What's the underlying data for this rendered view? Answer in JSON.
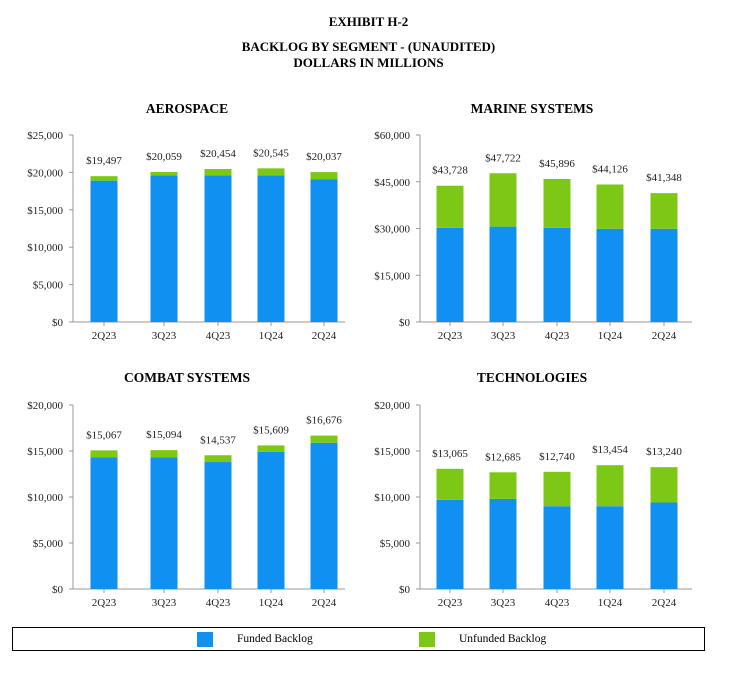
{
  "header": {
    "exhibit": "EXHIBIT H-2",
    "title": "BACKLOG BY SEGMENT - (UNAUDITED)",
    "subtitle": "DOLLARS IN MILLIONS"
  },
  "colors": {
    "funded": "#1090F0",
    "unfunded": "#7CC815",
    "axis": "#999999"
  },
  "legend": {
    "funded_label": "Funded Backlog",
    "unfunded_label": "Unfunded Backlog"
  },
  "chart_data": [
    {
      "type": "bar",
      "stacked": true,
      "title": "AEROSPACE",
      "categories": [
        "2Q23",
        "3Q23",
        "4Q23",
        "1Q24",
        "2Q24"
      ],
      "series": [
        {
          "name": "Funded Backlog",
          "values": [
            18900,
            19600,
            19600,
            19600,
            19100
          ]
        },
        {
          "name": "Unfunded Backlog",
          "values": [
            597,
            459,
            854,
            945,
            937
          ]
        }
      ],
      "totals": [
        19497,
        20059,
        20454,
        20545,
        20037
      ],
      "total_labels": [
        "$19,497",
        "$20,059",
        "$20,454",
        "$20,545",
        "$20,037"
      ],
      "ylim": [
        0,
        25000
      ],
      "yticks": [
        0,
        5000,
        10000,
        15000,
        20000,
        25000
      ],
      "ytick_labels": [
        "$0",
        "$5,000",
        "$10,000",
        "$15,000",
        "$20,000",
        "$25,000"
      ],
      "xlabel": "",
      "ylabel": "",
      "grid": false
    },
    {
      "type": "bar",
      "stacked": true,
      "title": "MARINE SYSTEMS",
      "categories": [
        "2Q23",
        "3Q23",
        "4Q23",
        "1Q24",
        "2Q24"
      ],
      "series": [
        {
          "name": "Funded Backlog",
          "values": [
            30200,
            30600,
            30200,
            29900,
            29900
          ]
        },
        {
          "name": "Unfunded Backlog",
          "values": [
            13528,
            17122,
            15696,
            14226,
            11448
          ]
        }
      ],
      "totals": [
        43728,
        47722,
        45896,
        44126,
        41348
      ],
      "total_labels": [
        "$43,728",
        "$47,722",
        "$45,896",
        "$44,126",
        "$41,348"
      ],
      "ylim": [
        0,
        60000
      ],
      "yticks": [
        0,
        15000,
        30000,
        45000,
        60000
      ],
      "ytick_labels": [
        "$0",
        "$15,000",
        "$30,000",
        "$45,000",
        "$60,000"
      ],
      "xlabel": "",
      "ylabel": "",
      "grid": false
    },
    {
      "type": "bar",
      "stacked": true,
      "title": "COMBAT SYSTEMS",
      "categories": [
        "2Q23",
        "3Q23",
        "4Q23",
        "1Q24",
        "2Q24"
      ],
      "series": [
        {
          "name": "Funded Backlog",
          "values": [
            14300,
            14300,
            13800,
            14900,
            15900
          ]
        },
        {
          "name": "Unfunded Backlog",
          "values": [
            767,
            794,
            737,
            709,
            776
          ]
        }
      ],
      "totals": [
        15067,
        15094,
        14537,
        15609,
        16676
      ],
      "total_labels": [
        "$15,067",
        "$15,094",
        "$14,537",
        "$15,609",
        "$16,676"
      ],
      "ylim": [
        0,
        20000
      ],
      "yticks": [
        0,
        5000,
        10000,
        15000,
        20000
      ],
      "ytick_labels": [
        "$0",
        "$5,000",
        "$10,000",
        "$15,000",
        "$20,000"
      ],
      "xlabel": "",
      "ylabel": "",
      "grid": false
    },
    {
      "type": "bar",
      "stacked": true,
      "title": "TECHNOLOGIES",
      "categories": [
        "2Q23",
        "3Q23",
        "4Q23",
        "1Q24",
        "2Q24"
      ],
      "series": [
        {
          "name": "Funded Backlog",
          "values": [
            9700,
            9800,
            9000,
            9000,
            9400
          ]
        },
        {
          "name": "Unfunded Backlog",
          "values": [
            3365,
            2885,
            3740,
            4454,
            3840
          ]
        }
      ],
      "totals": [
        13065,
        12685,
        12740,
        13454,
        13240
      ],
      "total_labels": [
        "$13,065",
        "$12,685",
        "$12,740",
        "$13,454",
        "$13,240"
      ],
      "ylim": [
        0,
        20000
      ],
      "yticks": [
        0,
        5000,
        10000,
        15000,
        20000
      ],
      "ytick_labels": [
        "$0",
        "$5,000",
        "$10,000",
        "$15,000",
        "$20,000"
      ],
      "xlabel": "",
      "ylabel": "",
      "grid": false
    }
  ]
}
